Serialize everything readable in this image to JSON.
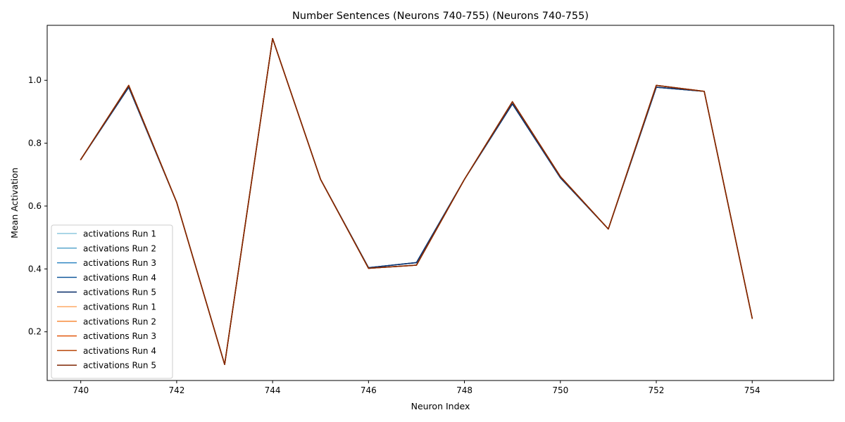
{
  "chart_data": {
    "type": "line",
    "title": "Number Sentences (Neurons 740-755) (Neurons 740-755)",
    "xlabel": "Neuron Index",
    "ylabel": "Mean Activation",
    "xlim": [
      739.3,
      755.7
    ],
    "ylim": [
      0.045,
      1.175
    ],
    "xticks": [
      740,
      742,
      744,
      746,
      748,
      750,
      752,
      754
    ],
    "yticks": [
      0.2,
      0.4,
      0.6,
      0.8,
      1.0
    ],
    "ytick_labels": [
      "0.2",
      "0.4",
      "0.6",
      "0.8",
      "1.0"
    ],
    "x": [
      740,
      741,
      742,
      743,
      744,
      745,
      746,
      747,
      748,
      749,
      750,
      751,
      752,
      753,
      754
    ],
    "legend_position": "lower-left",
    "series": [
      {
        "name": "activations Run 1",
        "color": "#8ec9df",
        "values": [
          0.748,
          0.978,
          0.612,
          0.096,
          1.133,
          0.685,
          0.404,
          0.42,
          0.685,
          0.925,
          0.69,
          0.527,
          0.978,
          0.965,
          0.243
        ]
      },
      {
        "name": "activations Run 2",
        "color": "#5aa7cd",
        "values": [
          0.748,
          0.978,
          0.612,
          0.096,
          1.133,
          0.685,
          0.404,
          0.42,
          0.685,
          0.925,
          0.69,
          0.527,
          0.978,
          0.965,
          0.243
        ]
      },
      {
        "name": "activations Run 3",
        "color": "#2f86c2",
        "values": [
          0.748,
          0.978,
          0.612,
          0.096,
          1.133,
          0.685,
          0.404,
          0.42,
          0.685,
          0.925,
          0.69,
          0.527,
          0.978,
          0.965,
          0.243
        ]
      },
      {
        "name": "activations Run 4",
        "color": "#155b9c",
        "values": [
          0.748,
          0.978,
          0.612,
          0.096,
          1.133,
          0.685,
          0.404,
          0.42,
          0.685,
          0.925,
          0.69,
          0.527,
          0.978,
          0.965,
          0.243
        ]
      },
      {
        "name": "activations Run 5",
        "color": "#0b2f6b",
        "values": [
          0.748,
          0.978,
          0.612,
          0.096,
          1.133,
          0.685,
          0.404,
          0.42,
          0.685,
          0.925,
          0.69,
          0.527,
          0.978,
          0.965,
          0.243
        ]
      },
      {
        "name": "activations Run 1",
        "color": "#fdaa66",
        "values": [
          0.748,
          0.984,
          0.612,
          0.096,
          1.133,
          0.685,
          0.402,
          0.412,
          0.685,
          0.932,
          0.694,
          0.527,
          0.984,
          0.965,
          0.243
        ]
      },
      {
        "name": "activations Run 2",
        "color": "#f78b3a",
        "values": [
          0.748,
          0.984,
          0.612,
          0.096,
          1.133,
          0.685,
          0.402,
          0.412,
          0.685,
          0.932,
          0.694,
          0.527,
          0.984,
          0.965,
          0.243
        ]
      },
      {
        "name": "activations Run 3",
        "color": "#e2590e",
        "values": [
          0.748,
          0.984,
          0.612,
          0.096,
          1.133,
          0.685,
          0.402,
          0.412,
          0.685,
          0.932,
          0.694,
          0.527,
          0.984,
          0.965,
          0.243
        ]
      },
      {
        "name": "activations Run 4",
        "color": "#b84507",
        "values": [
          0.748,
          0.984,
          0.612,
          0.096,
          1.133,
          0.685,
          0.402,
          0.412,
          0.685,
          0.932,
          0.694,
          0.527,
          0.984,
          0.965,
          0.243
        ]
      },
      {
        "name": "activations Run 5",
        "color": "#7f2704",
        "values": [
          0.748,
          0.984,
          0.612,
          0.096,
          1.133,
          0.685,
          0.402,
          0.412,
          0.685,
          0.932,
          0.694,
          0.527,
          0.984,
          0.965,
          0.243
        ]
      }
    ]
  }
}
